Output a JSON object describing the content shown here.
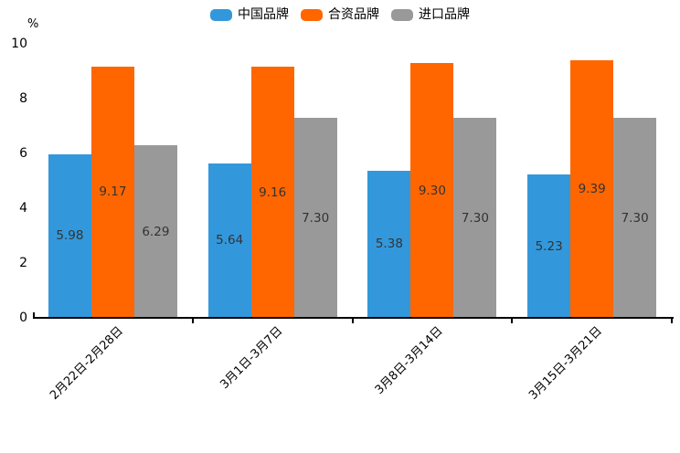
{
  "chart_data": {
    "type": "bar",
    "title": "",
    "y_unit": "%",
    "xlabel": "",
    "ylabel": "%",
    "ylim": [
      0,
      10
    ],
    "yticks": [
      0,
      2,
      4,
      6,
      8,
      10
    ],
    "grid": false,
    "legend_position": "top",
    "value_labels": "inside-center",
    "x_label_rotation": 45,
    "categories": [
      "2月22日-2月28日",
      "3月1日-3月7日",
      "3月8日-3月14日",
      "3月15日-3月21日"
    ],
    "series": [
      {
        "name": "中国品牌",
        "color": "#3398DB",
        "values": [
          5.98,
          5.64,
          5.38,
          5.23
        ]
      },
      {
        "name": "合资品牌",
        "color": "#FF6600",
        "values": [
          9.17,
          9.16,
          9.3,
          9.39
        ]
      },
      {
        "name": "进口品牌",
        "color": "#999999",
        "values": [
          6.29,
          7.3,
          7.3,
          7.3
        ]
      }
    ],
    "colors": {
      "axis": "#000000",
      "value_label_text": "#333333",
      "background": "#ffffff"
    }
  }
}
